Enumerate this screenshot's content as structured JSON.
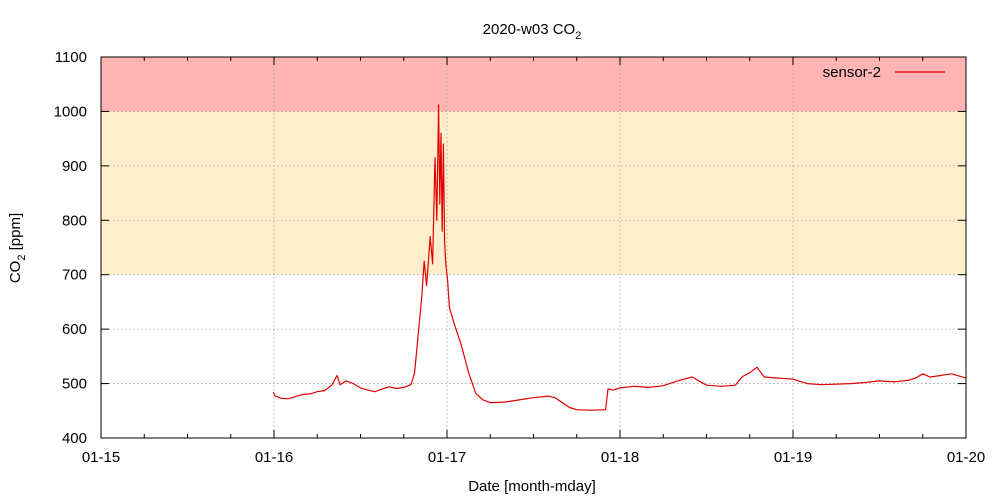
{
  "chart_data": {
    "type": "line",
    "title": "2020-w03 CO",
    "title_subscript": "2",
    "xlabel": "Date [month-mday]",
    "ylabel": "CO",
    "ylabel_subscript": "2",
    "ylabel_unit": " [ppm]",
    "x_tick_labels": [
      "01-15",
      "01-16",
      "01-17",
      "01-18",
      "01-19",
      "01-20"
    ],
    "x_ticks": [
      "2020-01-15",
      "2020-01-16",
      "2020-01-17",
      "2020-01-18",
      "2020-01-19",
      "2020-01-20"
    ],
    "y_tick_labels": [
      "400",
      "500",
      "600",
      "700",
      "800",
      "900",
      "1000",
      "1100"
    ],
    "xlim": [
      "2020-01-15T00:00",
      "2020-01-20T00:00"
    ],
    "ylim": [
      400,
      1100
    ],
    "grid": true,
    "legend_position": "top-right",
    "bands": [
      {
        "from": 1000,
        "to": 1100,
        "color": "#ffb3b3"
      },
      {
        "from": 700,
        "to": 1000,
        "color": "#ffedcc"
      }
    ],
    "series": [
      {
        "name": "sensor-2",
        "color": "#e00000",
        "points": [
          [
            "2020-01-15T23:53",
            484
          ],
          [
            "2020-01-16T00:10",
            477
          ],
          [
            "2020-01-16T01:00",
            473
          ],
          [
            "2020-01-16T02:00",
            472
          ],
          [
            "2020-01-16T03:00",
            476
          ],
          [
            "2020-01-16T04:00",
            480
          ],
          [
            "2020-01-16T05:00",
            481
          ],
          [
            "2020-01-16T06:00",
            485
          ],
          [
            "2020-01-16T07:00",
            487
          ],
          [
            "2020-01-16T08:00",
            497
          ],
          [
            "2020-01-16T08:45",
            515
          ],
          [
            "2020-01-16T09:10",
            498
          ],
          [
            "2020-01-16T10:00",
            505
          ],
          [
            "2020-01-16T11:00",
            500
          ],
          [
            "2020-01-16T12:00",
            492
          ],
          [
            "2020-01-16T13:00",
            488
          ],
          [
            "2020-01-16T14:00",
            485
          ],
          [
            "2020-01-16T15:00",
            490
          ],
          [
            "2020-01-16T16:00",
            494
          ],
          [
            "2020-01-16T17:00",
            491
          ],
          [
            "2020-01-16T18:00",
            493
          ],
          [
            "2020-01-16T19:00",
            498
          ],
          [
            "2020-01-16T19:30",
            520
          ],
          [
            "2020-01-16T20:00",
            590
          ],
          [
            "2020-01-16T20:30",
            660
          ],
          [
            "2020-01-16T20:50",
            725
          ],
          [
            "2020-01-16T21:10",
            680
          ],
          [
            "2020-01-16T21:40",
            770
          ],
          [
            "2020-01-16T22:00",
            720
          ],
          [
            "2020-01-16T22:20",
            915
          ],
          [
            "2020-01-16T22:35",
            800
          ],
          [
            "2020-01-16T22:50",
            1012
          ],
          [
            "2020-01-16T23:00",
            830
          ],
          [
            "2020-01-16T23:10",
            960
          ],
          [
            "2020-01-16T23:20",
            780
          ],
          [
            "2020-01-16T23:30",
            940
          ],
          [
            "2020-01-16T23:40",
            760
          ],
          [
            "2020-01-16T23:50",
            720
          ],
          [
            "2020-01-17T00:05",
            690
          ],
          [
            "2020-01-17T00:20",
            640
          ],
          [
            "2020-01-17T01:00",
            610
          ],
          [
            "2020-01-17T02:00",
            570
          ],
          [
            "2020-01-17T03:00",
            520
          ],
          [
            "2020-01-17T04:00",
            482
          ],
          [
            "2020-01-17T05:00",
            470
          ],
          [
            "2020-01-17T06:00",
            465
          ],
          [
            "2020-01-17T08:00",
            466
          ],
          [
            "2020-01-17T10:00",
            470
          ],
          [
            "2020-01-17T12:00",
            474
          ],
          [
            "2020-01-17T14:00",
            477
          ],
          [
            "2020-01-17T15:00",
            474
          ],
          [
            "2020-01-17T16:00",
            465
          ],
          [
            "2020-01-17T17:00",
            456
          ],
          [
            "2020-01-17T18:00",
            452
          ],
          [
            "2020-01-17T20:00",
            451
          ],
          [
            "2020-01-17T22:00",
            452
          ],
          [
            "2020-01-17T22:20",
            490
          ],
          [
            "2020-01-17T23:00",
            488
          ],
          [
            "2020-01-18T00:00",
            492
          ],
          [
            "2020-01-18T02:00",
            495
          ],
          [
            "2020-01-18T04:00",
            493
          ],
          [
            "2020-01-18T06:00",
            496
          ],
          [
            "2020-01-18T08:00",
            505
          ],
          [
            "2020-01-18T10:00",
            512
          ],
          [
            "2020-01-18T12:00",
            497
          ],
          [
            "2020-01-18T14:00",
            495
          ],
          [
            "2020-01-18T16:00",
            497
          ],
          [
            "2020-01-18T17:00",
            513
          ],
          [
            "2020-01-18T18:00",
            520
          ],
          [
            "2020-01-18T19:00",
            530
          ],
          [
            "2020-01-18T20:00",
            512
          ],
          [
            "2020-01-18T22:00",
            510
          ],
          [
            "2020-01-19T00:00",
            508
          ],
          [
            "2020-01-19T02:00",
            500
          ],
          [
            "2020-01-19T04:00",
            498
          ],
          [
            "2020-01-19T06:00",
            499
          ],
          [
            "2020-01-19T08:00",
            500
          ],
          [
            "2020-01-19T10:00",
            502
          ],
          [
            "2020-01-19T12:00",
            505
          ],
          [
            "2020-01-19T14:00",
            503
          ],
          [
            "2020-01-19T16:00",
            506
          ],
          [
            "2020-01-19T17:00",
            510
          ],
          [
            "2020-01-19T18:00",
            518
          ],
          [
            "2020-01-19T19:00",
            512
          ],
          [
            "2020-01-19T20:00",
            514
          ],
          [
            "2020-01-19T22:00",
            518
          ],
          [
            "2020-01-20T00:00",
            510
          ]
        ]
      }
    ]
  }
}
